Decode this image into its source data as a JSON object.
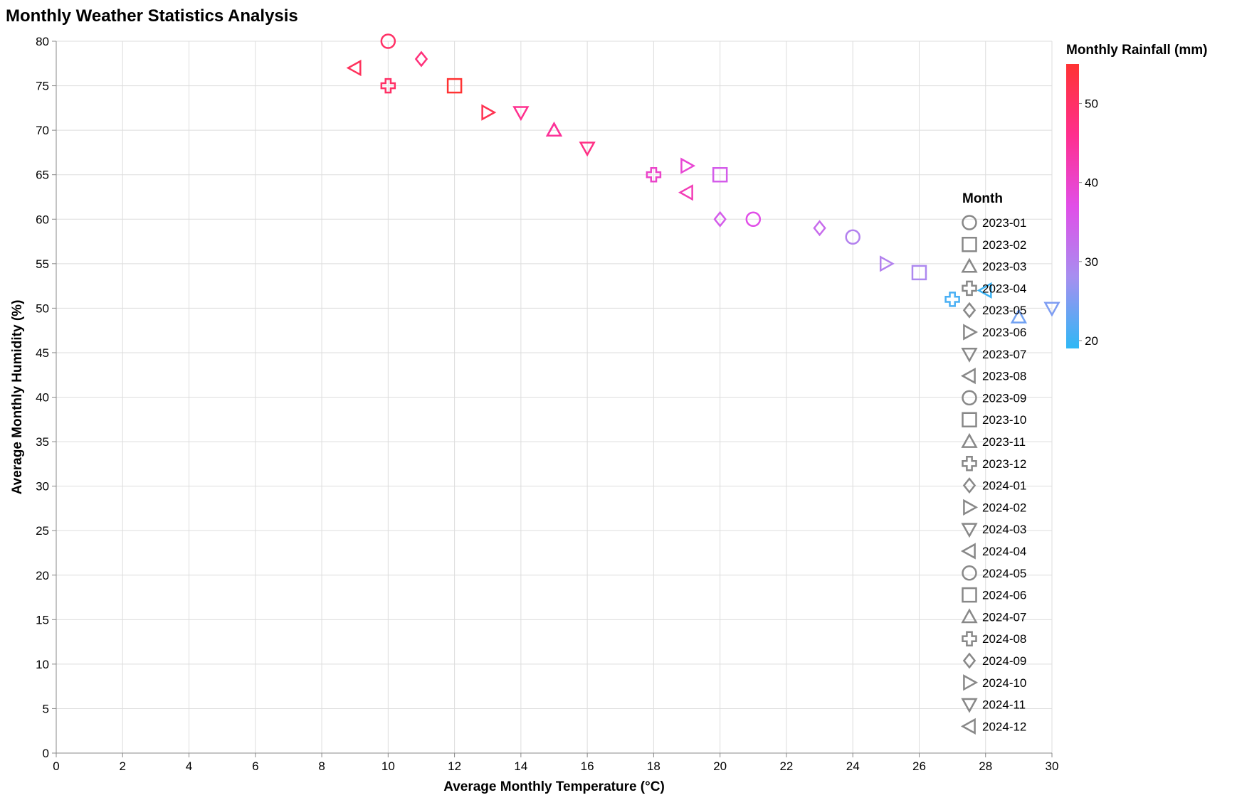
{
  "chart_data": {
    "type": "scatter",
    "title": "Monthly Weather Statistics Analysis",
    "xlabel": "Average Monthly Temperature (°C)",
    "ylabel": "Average Monthly Humidity (%)",
    "xlim": [
      0,
      30
    ],
    "ylim": [
      0,
      80
    ],
    "x_ticks": [
      0,
      2,
      4,
      6,
      8,
      10,
      12,
      14,
      16,
      18,
      20,
      22,
      24,
      26,
      28,
      30
    ],
    "y_ticks": [
      0,
      5,
      10,
      15,
      20,
      25,
      30,
      35,
      40,
      45,
      50,
      55,
      60,
      65,
      70,
      75,
      80
    ],
    "grid": true,
    "color_legend": {
      "title": "Monthly Rainfall (mm)",
      "domain": [
        19,
        55
      ],
      "ticks": [
        20,
        30,
        40,
        50
      ],
      "gradient": [
        "#2fb8f5",
        "#a68ff0",
        "#e14ee8",
        "#ff2f8e",
        "#ff3333"
      ]
    },
    "shape_legend": {
      "title": "Month",
      "placement": "right",
      "symbol_color": "#888888"
    },
    "points": [
      {
        "month": "2023-01",
        "shape": "circle",
        "temp": 10,
        "humidity": 80,
        "rainfall": 50
      },
      {
        "month": "2023-02",
        "shape": "square",
        "temp": 12,
        "humidity": 75,
        "rainfall": 55
      },
      {
        "month": "2023-03",
        "shape": "triangle-up",
        "temp": 15,
        "humidity": 70,
        "rainfall": 45
      },
      {
        "month": "2023-04",
        "shape": "cross",
        "temp": 18,
        "humidity": 65,
        "rainfall": 40
      },
      {
        "month": "2023-05",
        "shape": "diamond",
        "temp": 20,
        "humidity": 60,
        "rainfall": 35
      },
      {
        "month": "2023-06",
        "shape": "triangle-right",
        "temp": 25,
        "humidity": 55,
        "rainfall": 30
      },
      {
        "month": "2023-07",
        "shape": "triangle-down",
        "temp": 30,
        "humidity": 50,
        "rainfall": 25
      },
      {
        "month": "2023-08",
        "shape": "triangle-left",
        "temp": 28,
        "humidity": 52,
        "rainfall": 20
      },
      {
        "month": "2023-09",
        "shape": "circle",
        "temp": 24,
        "humidity": 58,
        "rainfall": 30
      },
      {
        "month": "2023-10",
        "shape": "square",
        "temp": 20,
        "humidity": 65,
        "rainfall": 35
      },
      {
        "month": "2023-11",
        "shape": "triangle-up",
        "temp": 15,
        "humidity": 70,
        "rainfall": 45
      },
      {
        "month": "2023-12",
        "shape": "cross",
        "temp": 10,
        "humidity": 75,
        "rainfall": 50
      },
      {
        "month": "2024-01",
        "shape": "diamond",
        "temp": 11,
        "humidity": 78,
        "rainfall": 48
      },
      {
        "month": "2024-02",
        "shape": "triangle-right",
        "temp": 13,
        "humidity": 72,
        "rainfall": 52
      },
      {
        "month": "2024-03",
        "shape": "triangle-down",
        "temp": 16,
        "humidity": 68,
        "rainfall": 47
      },
      {
        "month": "2024-04",
        "shape": "triangle-left",
        "temp": 19,
        "humidity": 63,
        "rainfall": 42
      },
      {
        "month": "2024-05",
        "shape": "circle",
        "temp": 21,
        "humidity": 60,
        "rainfall": 37
      },
      {
        "month": "2024-06",
        "shape": "square",
        "temp": 26,
        "humidity": 54,
        "rainfall": 29
      },
      {
        "month": "2024-07",
        "shape": "triangle-up",
        "temp": 29,
        "humidity": 49,
        "rainfall": 24
      },
      {
        "month": "2024-08",
        "shape": "cross",
        "temp": 27,
        "humidity": 51,
        "rainfall": 21
      },
      {
        "month": "2024-09",
        "shape": "diamond",
        "temp": 23,
        "humidity": 59,
        "rainfall": 33
      },
      {
        "month": "2024-10",
        "shape": "triangle-right",
        "temp": 19,
        "humidity": 66,
        "rainfall": 39
      },
      {
        "month": "2024-11",
        "shape": "triangle-down",
        "temp": 14,
        "humidity": 72,
        "rainfall": 46
      },
      {
        "month": "2024-12",
        "shape": "triangle-left",
        "temp": 9,
        "humidity": 77,
        "rainfall": 51
      }
    ]
  }
}
